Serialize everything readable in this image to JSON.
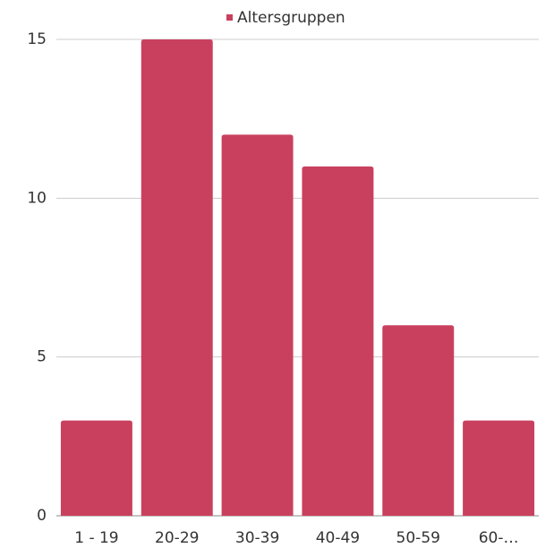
{
  "chart_data": {
    "type": "bar",
    "legend": "Altersgruppen",
    "categories": [
      "1 - 19",
      "20-29",
      "30-39",
      "40-49",
      "50-59",
      "60-…"
    ],
    "values": [
      3,
      15,
      12,
      11,
      6,
      3
    ],
    "color": "#c9405f",
    "ylim": [
      0,
      15
    ],
    "yticks": [
      0,
      5,
      10,
      15
    ],
    "grid": true
  }
}
